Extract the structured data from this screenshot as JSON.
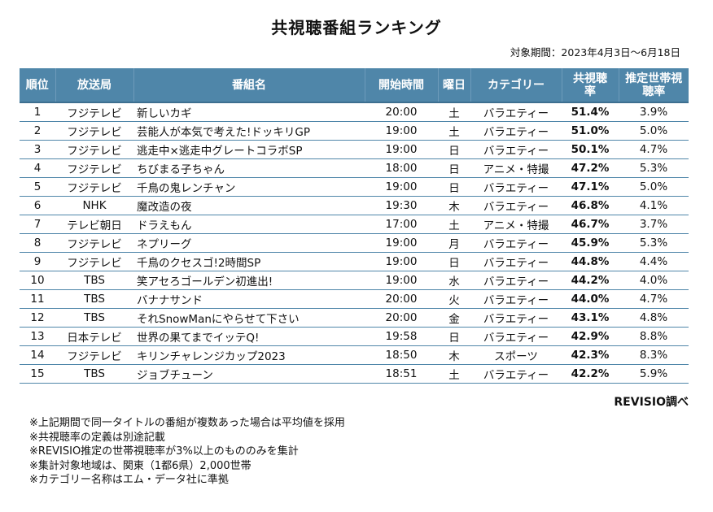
{
  "title": "共視聴番組ランキング",
  "period": "対象期間：2023年4月3日～6月18日",
  "headers": {
    "rank": "順位",
    "station": "放送局",
    "program": "番組名",
    "start": "開始時間",
    "day": "曜日",
    "category": "カテゴリー",
    "co_view": "共視聴率",
    "est": "推定世帯視聴率"
  },
  "rows": [
    {
      "rank": "1",
      "station": "フジテレビ",
      "program": "新しいカギ",
      "start": "20:00",
      "day": "土",
      "category": "バラエティー",
      "co_view": "51.4%",
      "est": "3.9%"
    },
    {
      "rank": "2",
      "station": "フジテレビ",
      "program": "芸能人が本気で考えた!ドッキリGP",
      "start": "19:00",
      "day": "土",
      "category": "バラエティー",
      "co_view": "51.0%",
      "est": "5.0%"
    },
    {
      "rank": "3",
      "station": "フジテレビ",
      "program": "逃走中×逃走中グレートコラボSP",
      "start": "19:00",
      "day": "日",
      "category": "バラエティー",
      "co_view": "50.1%",
      "est": "4.7%"
    },
    {
      "rank": "4",
      "station": "フジテレビ",
      "program": "ちびまる子ちゃん",
      "start": "18:00",
      "day": "日",
      "category": "アニメ・特撮",
      "co_view": "47.2%",
      "est": "5.3%"
    },
    {
      "rank": "5",
      "station": "フジテレビ",
      "program": "千鳥の鬼レンチャン",
      "start": "19:00",
      "day": "日",
      "category": "バラエティー",
      "co_view": "47.1%",
      "est": "5.0%"
    },
    {
      "rank": "6",
      "station": "NHK",
      "program": "魔改造の夜",
      "start": "19:30",
      "day": "木",
      "category": "バラエティー",
      "co_view": "46.8%",
      "est": "4.1%"
    },
    {
      "rank": "7",
      "station": "テレビ朝日",
      "program": "ドラえもん",
      "start": "17:00",
      "day": "土",
      "category": "アニメ・特撮",
      "co_view": "46.7%",
      "est": "3.7%"
    },
    {
      "rank": "8",
      "station": "フジテレビ",
      "program": "ネプリーグ",
      "start": "19:00",
      "day": "月",
      "category": "バラエティー",
      "co_view": "45.9%",
      "est": "5.3%"
    },
    {
      "rank": "9",
      "station": "フジテレビ",
      "program": "千鳥のクセスゴ!2時間SP",
      "start": "19:00",
      "day": "日",
      "category": "バラエティー",
      "co_view": "44.8%",
      "est": "4.4%"
    },
    {
      "rank": "10",
      "station": "TBS",
      "program": "笑アセろゴールデン初進出!",
      "start": "19:00",
      "day": "水",
      "category": "バラエティー",
      "co_view": "44.2%",
      "est": "4.0%"
    },
    {
      "rank": "11",
      "station": "TBS",
      "program": "バナナサンド",
      "start": "20:00",
      "day": "火",
      "category": "バラエティー",
      "co_view": "44.0%",
      "est": "4.7%"
    },
    {
      "rank": "12",
      "station": "TBS",
      "program": "それSnowManにやらせて下さい",
      "start": "20:00",
      "day": "金",
      "category": "バラエティー",
      "co_view": "43.1%",
      "est": "4.8%"
    },
    {
      "rank": "13",
      "station": "日本テレビ",
      "program": "世界の果てまでイッテQ!",
      "start": "19:58",
      "day": "日",
      "category": "バラエティー",
      "co_view": "42.9%",
      "est": "8.8%"
    },
    {
      "rank": "14",
      "station": "フジテレビ",
      "program": "キリンチャレンジカップ2023",
      "start": "18:50",
      "day": "木",
      "category": "スポーツ",
      "co_view": "42.3%",
      "est": "8.3%"
    },
    {
      "rank": "15",
      "station": "TBS",
      "program": "ジョブチューン",
      "start": "18:51",
      "day": "土",
      "category": "バラエティー",
      "co_view": "42.2%",
      "est": "5.9%"
    }
  ],
  "source": "REVISIO調べ",
  "notes": [
    "※上記期間で同一タイトルの番組が複数あった場合は平均値を採用",
    "※共視聴率の定義は別途記載",
    "※REVISIO推定の世帯視聴率が3%以上のもののみを集計",
    "※集計対象地域は、関東（1都6県）2,000世帯",
    "※カテゴリー名称はエム・データ社に準拠"
  ],
  "colors": {
    "header_bg": "#4f86a9",
    "header_text": "#ffffff",
    "row_line": "#4f86a9"
  }
}
